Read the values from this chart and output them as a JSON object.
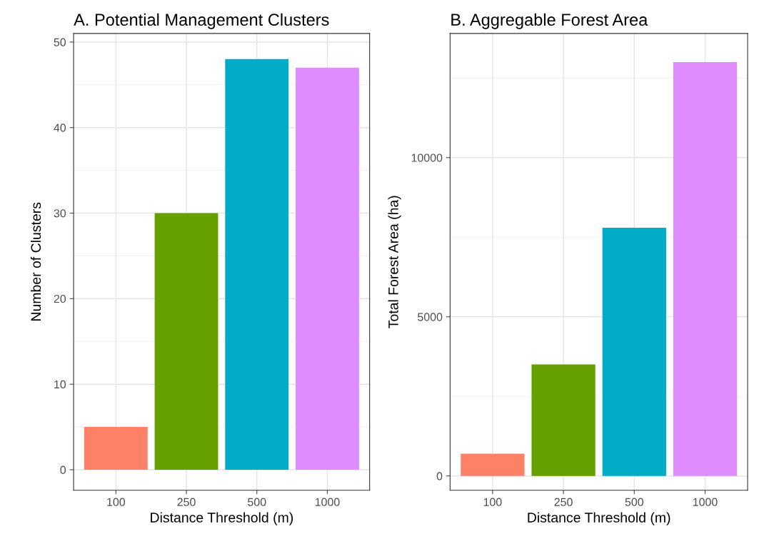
{
  "chart_data": [
    {
      "type": "bar",
      "title": "A. Potential Management Clusters",
      "xlabel": "Distance Threshold (m)",
      "ylabel": "Number of Clusters",
      "categories": [
        "100",
        "250",
        "500",
        "1000"
      ],
      "values": [
        5,
        30,
        48,
        47
      ],
      "colors": [
        "#fd8166",
        "#66a000",
        "#00acc6",
        "#df8cff"
      ],
      "ylim": [
        -2.4,
        51
      ],
      "yticks": [
        0,
        10,
        20,
        30,
        40,
        50
      ],
      "grid": true,
      "legend": false
    },
    {
      "type": "bar",
      "title": "B. Aggregable Forest Area",
      "xlabel": "Distance Threshold (m)",
      "ylabel": "Total Forest Area (ha)",
      "categories": [
        "100",
        "250",
        "500",
        "1000"
      ],
      "values": [
        700,
        3500,
        7800,
        13000
      ],
      "colors": [
        "#fd8166",
        "#66a000",
        "#00acc6",
        "#df8cff"
      ],
      "ylim": [
        -450,
        13900
      ],
      "yticks": [
        0,
        5000,
        10000
      ],
      "grid": true,
      "legend": false
    }
  ]
}
